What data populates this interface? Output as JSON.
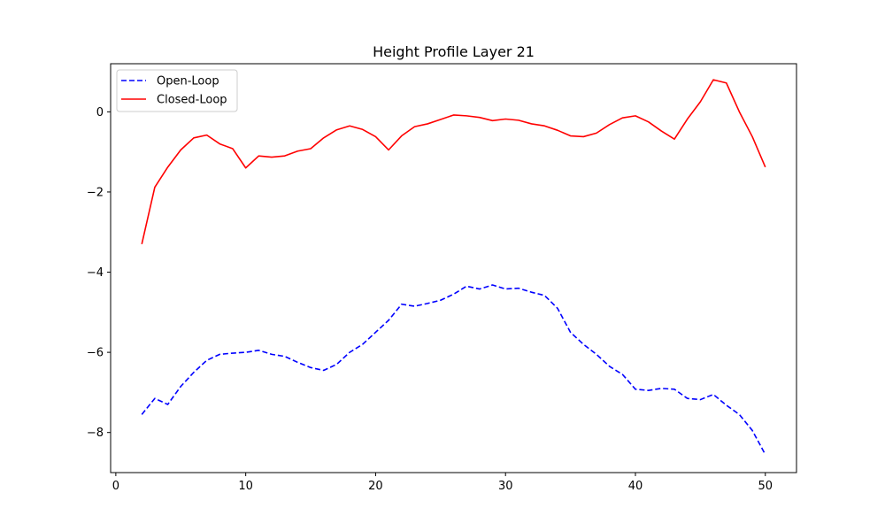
{
  "chart_data": {
    "type": "line",
    "title": "Height Profile Layer 21",
    "xlabel": "",
    "ylabel": "",
    "xlim": [
      -0.4,
      52.4
    ],
    "ylim": [
      -9.0,
      1.2
    ],
    "x_ticks": [
      0,
      10,
      20,
      30,
      40,
      50
    ],
    "y_ticks": [
      0,
      -2,
      -4,
      -6,
      -8
    ],
    "grid": false,
    "legend": "top-left",
    "x": [
      2,
      3,
      4,
      5,
      6,
      7,
      8,
      9,
      10,
      11,
      12,
      13,
      14,
      15,
      16,
      17,
      18,
      19,
      20,
      21,
      22,
      23,
      24,
      25,
      26,
      27,
      28,
      29,
      30,
      31,
      32,
      33,
      34,
      35,
      36,
      37,
      38,
      39,
      40,
      41,
      42,
      43,
      44,
      45,
      46,
      47,
      48,
      49,
      50
    ],
    "series": [
      {
        "name": "Open-Loop",
        "color": "#0000ff",
        "style": "dashed",
        "values": [
          -7.55,
          -7.15,
          -7.3,
          -6.85,
          -6.5,
          -6.2,
          -6.05,
          -6.02,
          -6.0,
          -5.95,
          -6.05,
          -6.1,
          -6.25,
          -6.38,
          -6.45,
          -6.3,
          -6.0,
          -5.8,
          -5.5,
          -5.2,
          -4.8,
          -4.85,
          -4.78,
          -4.7,
          -4.55,
          -4.35,
          -4.42,
          -4.32,
          -4.42,
          -4.4,
          -4.5,
          -4.58,
          -4.9,
          -5.5,
          -5.8,
          -6.05,
          -6.35,
          -6.55,
          -6.92,
          -6.95,
          -6.9,
          -6.92,
          -7.15,
          -7.18,
          -7.05,
          -7.32,
          -7.55,
          -7.95,
          -8.55
        ]
      },
      {
        "name": "Closed-Loop",
        "color": "#ff0000",
        "style": "solid",
        "values": [
          -3.3,
          -1.88,
          -1.38,
          -0.95,
          -0.65,
          -0.58,
          -0.8,
          -0.92,
          -1.4,
          -1.1,
          -1.13,
          -1.1,
          -0.98,
          -0.92,
          -0.65,
          -0.45,
          -0.35,
          -0.44,
          -0.62,
          -0.95,
          -0.6,
          -0.37,
          -0.3,
          -0.19,
          -0.08,
          -0.1,
          -0.14,
          -0.22,
          -0.18,
          -0.21,
          -0.3,
          -0.35,
          -0.46,
          -0.6,
          -0.62,
          -0.53,
          -0.32,
          -0.15,
          -0.1,
          -0.25,
          -0.48,
          -0.68,
          -0.18,
          0.25,
          0.8,
          0.72,
          0.0,
          -0.62,
          -1.38
        ]
      }
    ]
  }
}
